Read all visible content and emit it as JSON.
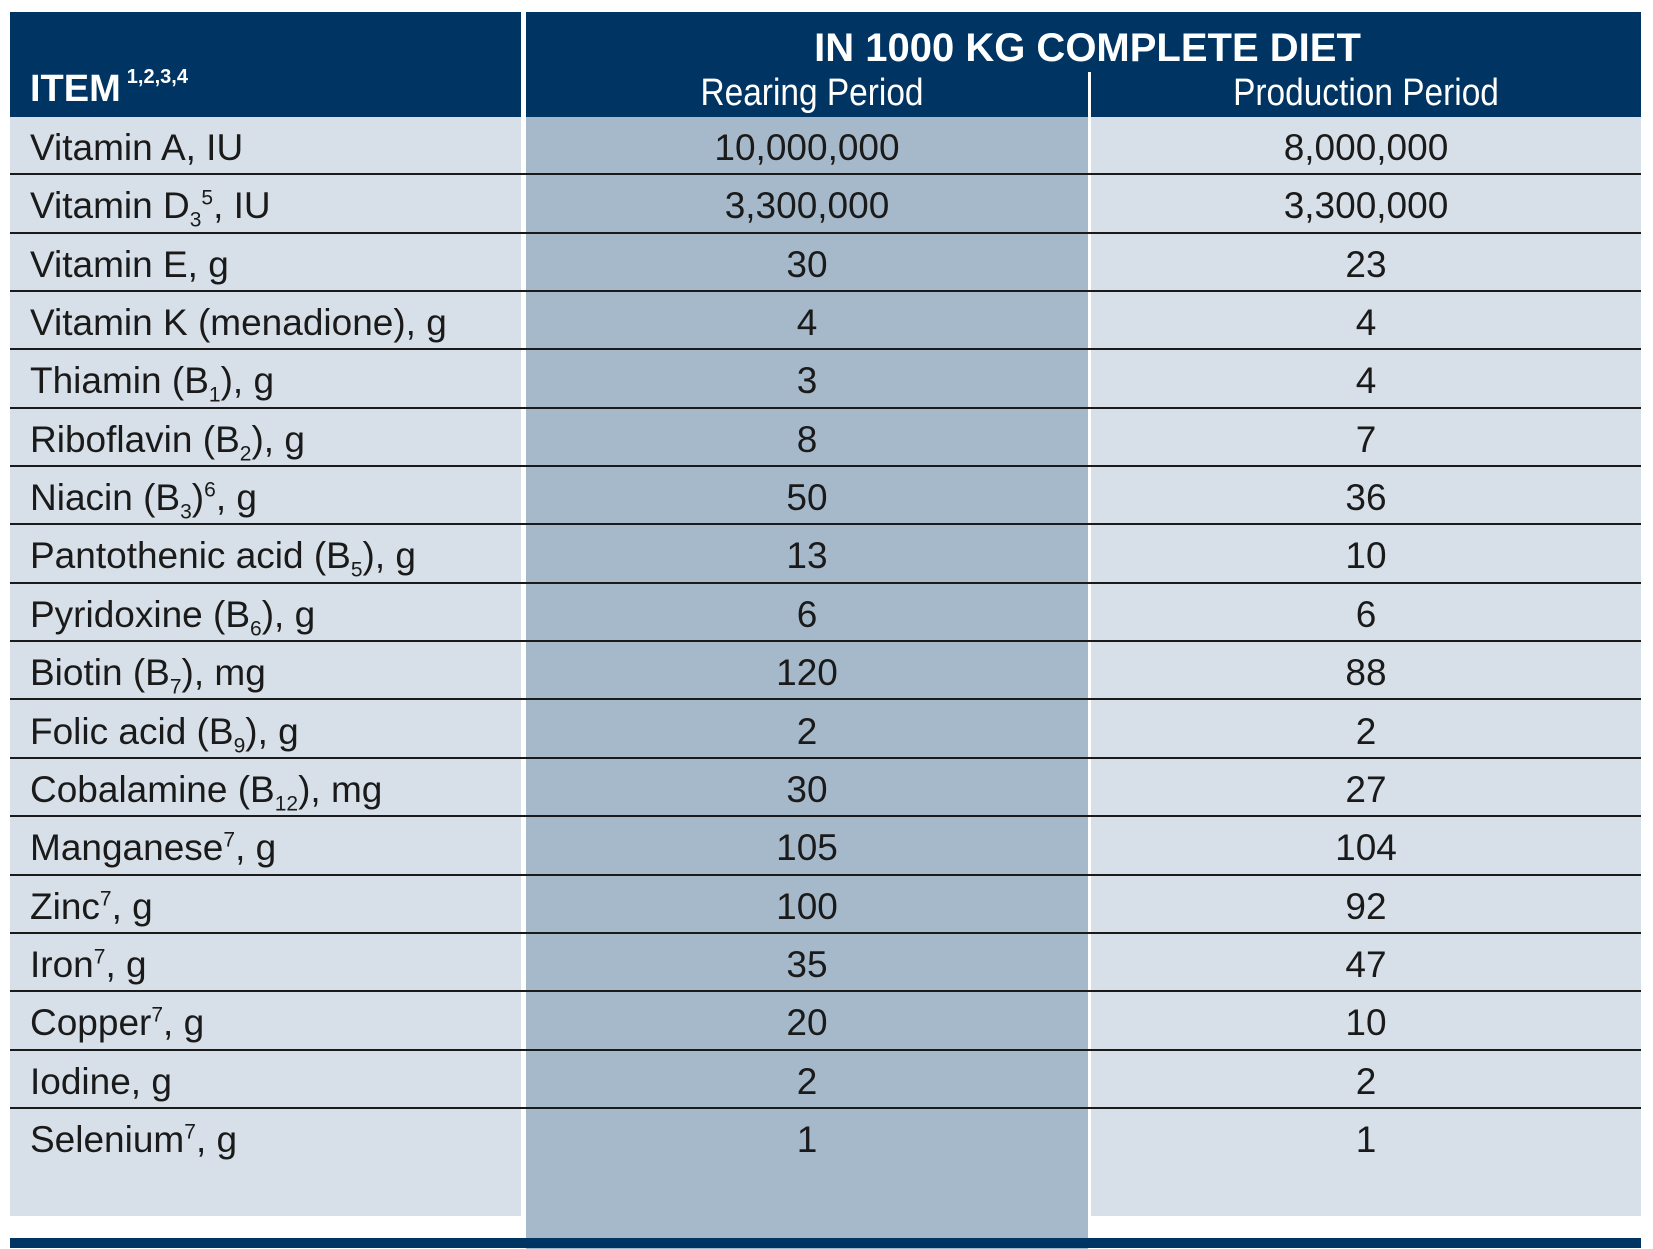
{
  "header": {
    "item_label": "ITEM",
    "item_footnotes": "1,2,3,4",
    "title": "IN 1000 KG COMPLETE DIET",
    "col_rearing": "Rearing Period",
    "col_production": "Production Period"
  },
  "rows": [
    {
      "pre": "Vitamin A, IU",
      "sub": "",
      "sup": "",
      "post": "",
      "rearing": "10,000,000",
      "production": "8,000,000"
    },
    {
      "pre": "Vitamin D",
      "sub": "3",
      "sup": "5",
      "post": ", IU",
      "rearing": "3,300,000",
      "production": "3,300,000"
    },
    {
      "pre": "Vitamin E, g",
      "sub": "",
      "sup": "",
      "post": "",
      "rearing": "30",
      "production": "23"
    },
    {
      "pre": "Vitamin K (menadione), g",
      "sub": "",
      "sup": "",
      "post": "",
      "rearing": "4",
      "production": "4"
    },
    {
      "pre": "Thiamin (B",
      "sub": "1",
      "sup": "",
      "post": "), g",
      "rearing": "3",
      "production": "4"
    },
    {
      "pre": "Riboflavin (B",
      "sub": "2",
      "sup": "",
      "post": "), g",
      "rearing": "8",
      "production": "7"
    },
    {
      "pre": "Niacin (B",
      "sub": "3",
      "sup": "",
      "post": ")",
      "sup2": "6",
      "post2": ", g",
      "rearing": "50",
      "production": "36"
    },
    {
      "pre": "Pantothenic acid (B",
      "sub": "5",
      "sup": "",
      "post": "), g",
      "rearing": "13",
      "production": "10"
    },
    {
      "pre": "Pyridoxine (B",
      "sub": "6",
      "sup": "",
      "post": "), g",
      "rearing": "6",
      "production": "6"
    },
    {
      "pre": "Biotin (B",
      "sub": "7",
      "sup": "",
      "post": "), mg",
      "rearing": "120",
      "production": "88"
    },
    {
      "pre": "Folic acid (B",
      "sub": "9",
      "sup": "",
      "post": "), g",
      "rearing": "2",
      "production": "2"
    },
    {
      "pre": "Cobalamine (B",
      "sub": "12",
      "sup": "",
      "post": "), mg",
      "rearing": "30",
      "production": "27"
    },
    {
      "pre": "Manganese",
      "sub": "",
      "sup": "7",
      "post": ", g",
      "rearing": "105",
      "production": "104"
    },
    {
      "pre": "Zinc",
      "sub": "",
      "sup": "7",
      "post": ", g",
      "rearing": "100",
      "production": "92"
    },
    {
      "pre": "Iron",
      "sub": "",
      "sup": "7",
      "post": ", g",
      "rearing": "35",
      "production": "47"
    },
    {
      "pre": "Copper",
      "sub": "",
      "sup": "7",
      "post": ", g",
      "rearing": "20",
      "production": "10"
    },
    {
      "pre": "Iodine, g",
      "sub": "",
      "sup": "",
      "post": "",
      "rearing": "2",
      "production": "2"
    },
    {
      "pre": "Selenium",
      "sub": "",
      "sup": "7",
      "post": ", g",
      "rearing": "1",
      "production": "1"
    }
  ],
  "colors": {
    "header_bg": "#003462",
    "row_bg": "#d7e0e8",
    "rearing_col_bg": "#a6b9ca",
    "text": "#1a1a1a"
  }
}
